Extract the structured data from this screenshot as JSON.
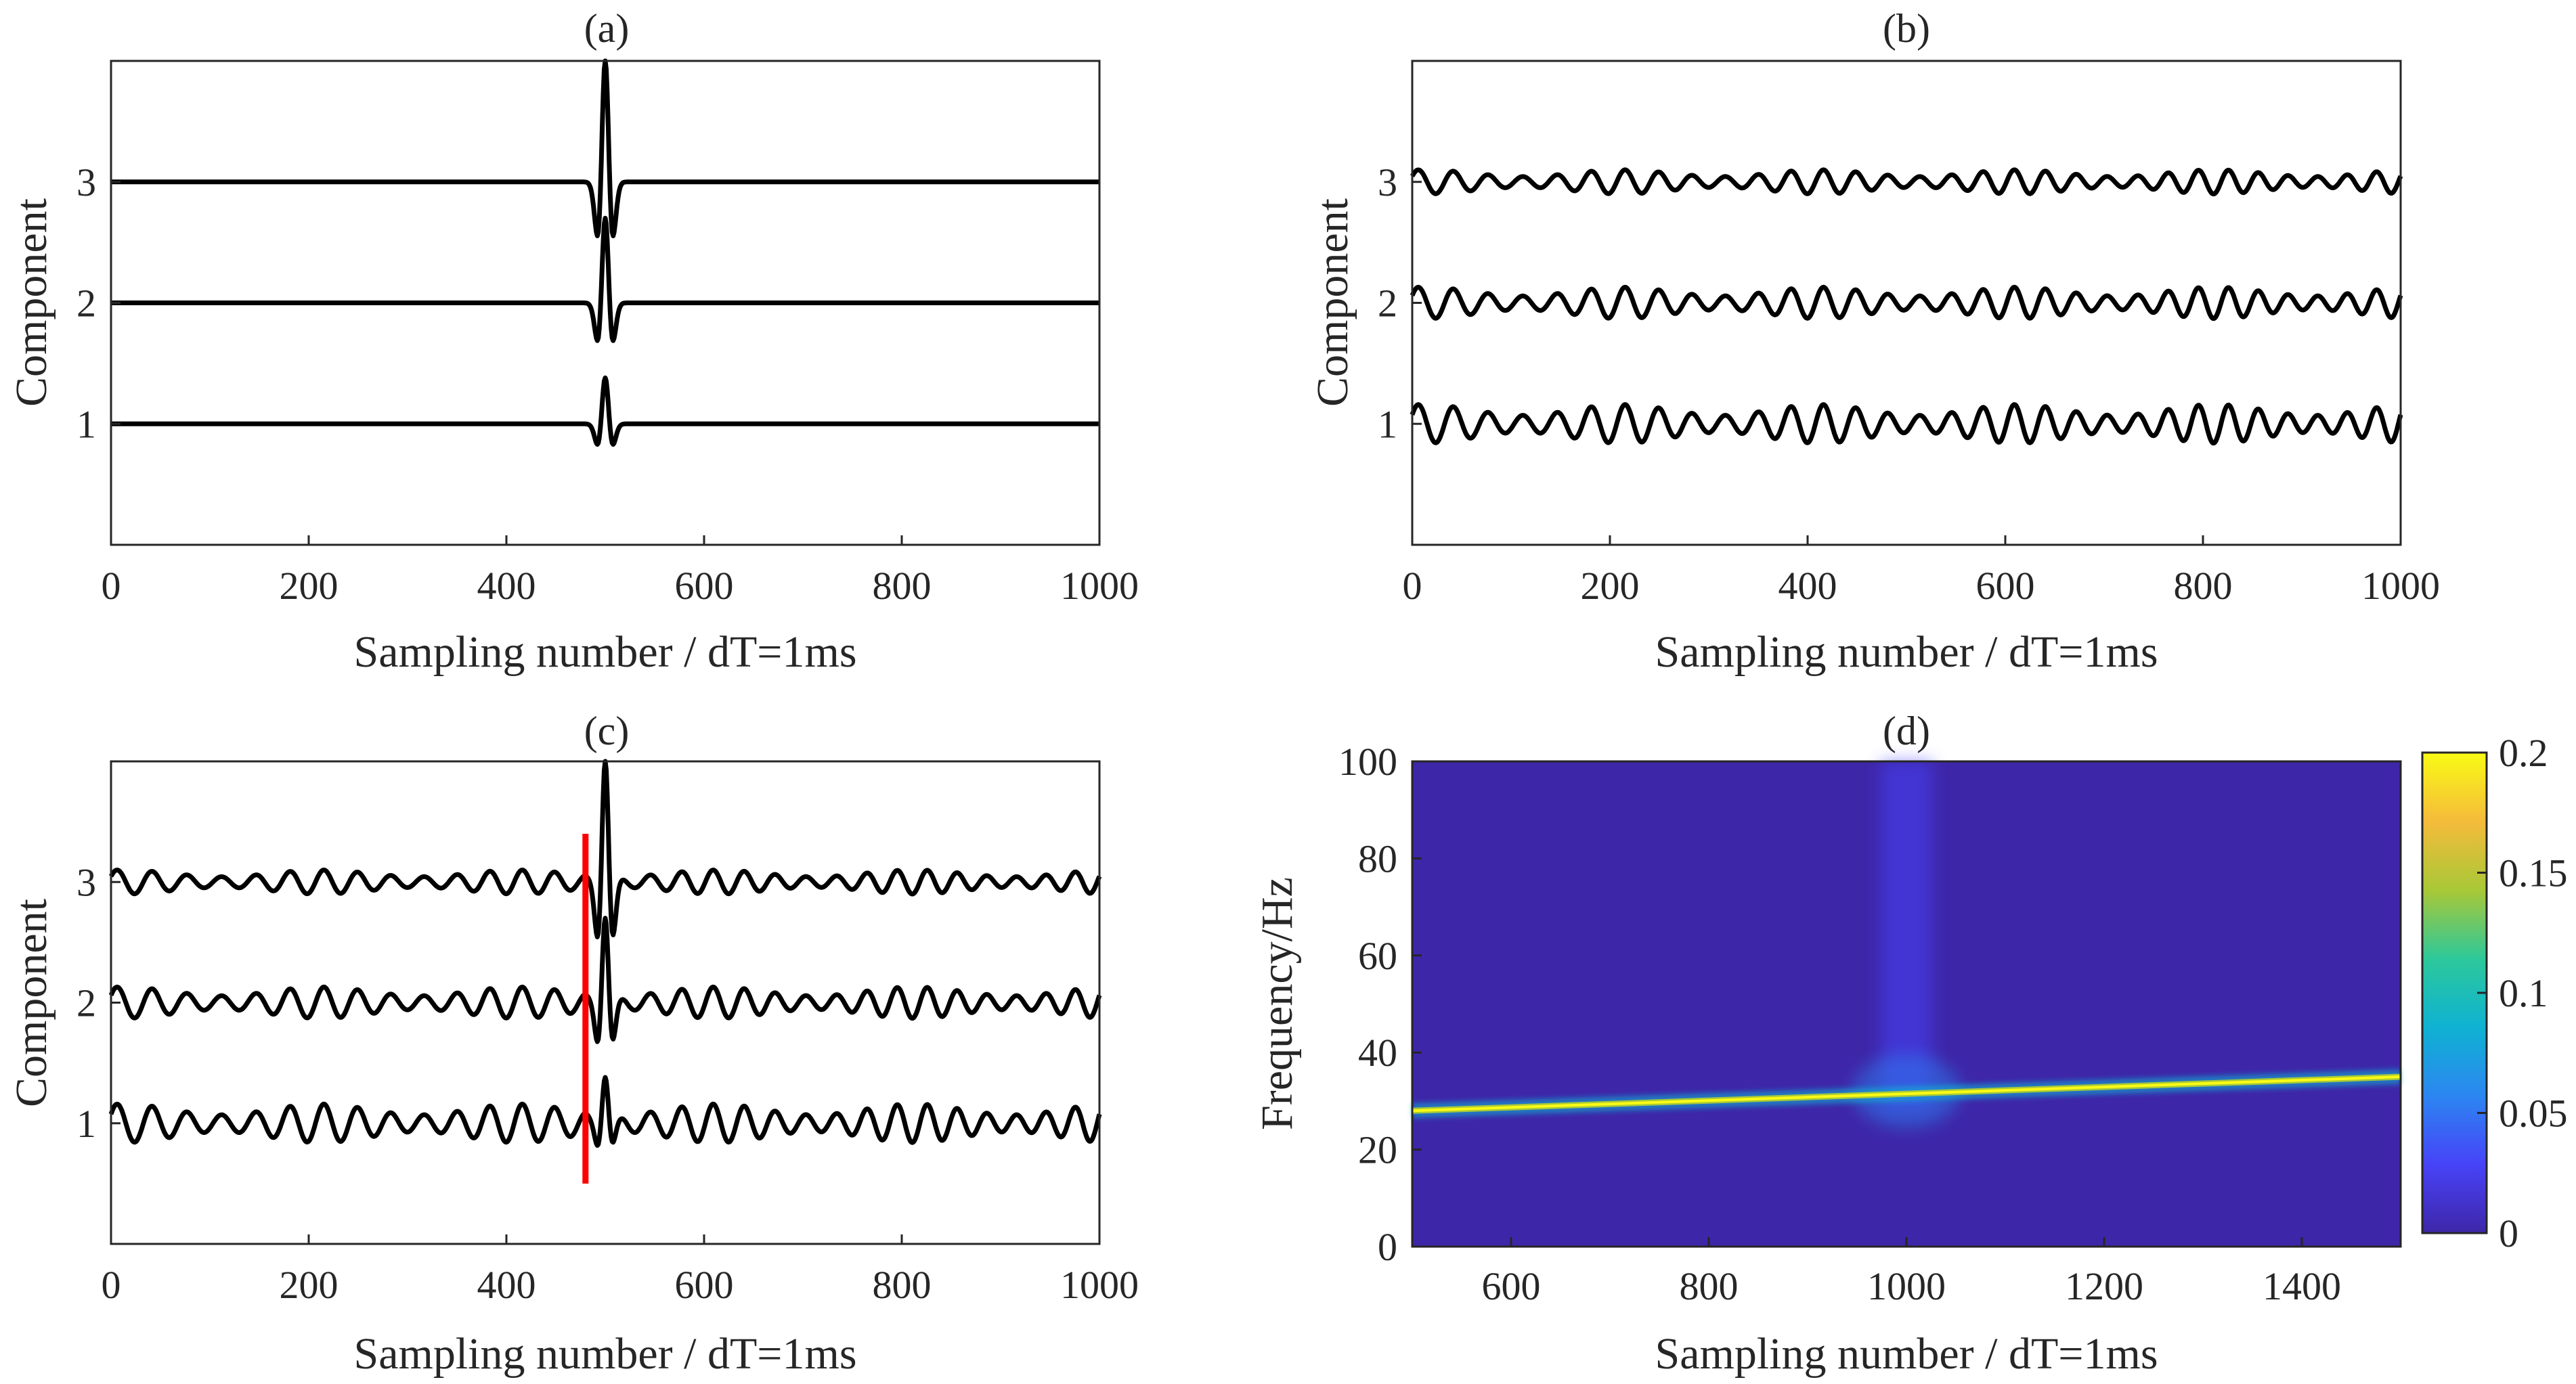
{
  "chart_data": [
    {
      "id": "a",
      "type": "line",
      "title": "(a)",
      "xlabel": "Sampling number / dT=1ms",
      "ylabel": "Component",
      "xlim": [
        0,
        1000
      ],
      "ylim": [
        0,
        4
      ],
      "xticks": [
        "0",
        "200",
        "400",
        "600",
        "800",
        "1000"
      ],
      "yticks": [
        "1",
        "2",
        "3"
      ],
      "series": [
        {
          "name": "1",
          "offset": 1,
          "wavelet": {
            "center": 500,
            "amplitude": 0.38
          }
        },
        {
          "name": "2",
          "offset": 2,
          "wavelet": {
            "center": 500,
            "amplitude": 0.7
          }
        },
        {
          "name": "3",
          "offset": 3,
          "wavelet": {
            "center": 500,
            "amplitude": 1.0
          }
        }
      ]
    },
    {
      "id": "b",
      "type": "line",
      "title": "(b)",
      "xlabel": "Sampling number / dT=1ms",
      "ylabel": "Component",
      "xlim": [
        0,
        1000
      ],
      "ylim": [
        0,
        4
      ],
      "xticks": [
        "0",
        "200",
        "400",
        "600",
        "800",
        "1000"
      ],
      "yticks": [
        "1",
        "2",
        "3"
      ],
      "series": [
        {
          "name": "1",
          "offset": 1,
          "oscillation": {
            "amplitude": 0.16,
            "freq_start_hz": 28,
            "freq_end_hz": 34
          }
        },
        {
          "name": "2",
          "offset": 2,
          "oscillation": {
            "amplitude": 0.13,
            "freq_start_hz": 28,
            "freq_end_hz": 34
          }
        },
        {
          "name": "3",
          "offset": 3,
          "oscillation": {
            "amplitude": 0.1,
            "freq_start_hz": 28,
            "freq_end_hz": 34
          }
        }
      ]
    },
    {
      "id": "c",
      "type": "line",
      "title": "(c)",
      "xlabel": "Sampling number / dT=1ms",
      "ylabel": "Component",
      "xlim": [
        0,
        1000
      ],
      "ylim": [
        0,
        4
      ],
      "xticks": [
        "0",
        "200",
        "400",
        "600",
        "800",
        "1000"
      ],
      "yticks": [
        "1",
        "2",
        "3"
      ],
      "marker_line": {
        "x": 480,
        "y_range": [
          0.5,
          3.4
        ],
        "color": "#ff0000"
      },
      "series": [
        {
          "name": "1",
          "offset": 1,
          "oscillation": {
            "amplitude": 0.16,
            "freq_start_hz": 28,
            "freq_end_hz": 34
          },
          "wavelet": {
            "center": 500,
            "amplitude": 0.38
          }
        },
        {
          "name": "2",
          "offset": 2,
          "oscillation": {
            "amplitude": 0.13,
            "freq_start_hz": 28,
            "freq_end_hz": 34
          },
          "wavelet": {
            "center": 500,
            "amplitude": 0.7
          }
        },
        {
          "name": "3",
          "offset": 3,
          "oscillation": {
            "amplitude": 0.1,
            "freq_start_hz": 28,
            "freq_end_hz": 34
          },
          "wavelet": {
            "center": 500,
            "amplitude": 1.0
          }
        }
      ]
    },
    {
      "id": "d",
      "type": "heatmap",
      "title": "(d)",
      "xlabel": "Sampling number / dT=1ms",
      "ylabel": "Frequency/Hz",
      "xlim": [
        500,
        1500
      ],
      "ylim": [
        0,
        100
      ],
      "xticks": [
        "600",
        "800",
        "1000",
        "1200",
        "1400"
      ],
      "yticks": [
        "0",
        "20",
        "40",
        "60",
        "80",
        "100"
      ],
      "ridge": {
        "x_start": 500,
        "freq_start": 28,
        "x_end": 1500,
        "freq_end": 35
      },
      "event": {
        "x": 1000,
        "freq_top": 100
      },
      "colorbar": {
        "ticks": [
          "0",
          "0.05",
          "0.1",
          "0.15",
          "0.2"
        ],
        "range": [
          0,
          0.2
        ],
        "colors": [
          "#3e26a8",
          "#4743f8",
          "#2c86f1",
          "#0fb2d2",
          "#2dc89a",
          "#a9c837",
          "#f5bb3b",
          "#f9fb15"
        ]
      }
    }
  ]
}
